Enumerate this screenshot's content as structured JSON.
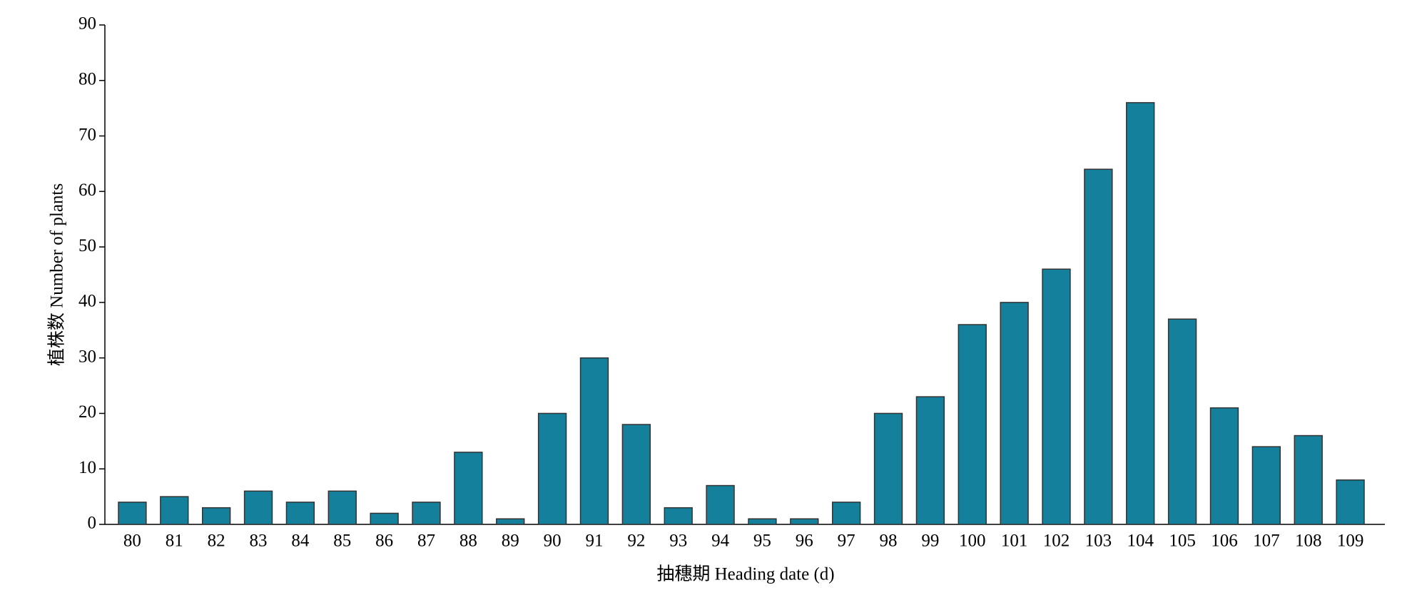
{
  "chart_data": {
    "type": "bar",
    "x_label": "抽穗期 Heading date (d)",
    "y_label": "植株数 Number of plants",
    "categories": [
      "80",
      "81",
      "82",
      "83",
      "84",
      "85",
      "86",
      "87",
      "88",
      "89",
      "90",
      "91",
      "92",
      "93",
      "94",
      "95",
      "96",
      "97",
      "98",
      "99",
      "100",
      "101",
      "102",
      "103",
      "104",
      "105",
      "106",
      "107",
      "108",
      "109"
    ],
    "values": [
      4,
      5,
      3,
      6,
      4,
      6,
      2,
      4,
      13,
      1,
      20,
      30,
      18,
      3,
      7,
      1,
      1,
      4,
      20,
      23,
      36,
      40,
      46,
      64,
      76,
      37,
      21,
      14,
      16,
      8
    ],
    "color": "#14809b",
    "ylim": [
      0,
      90
    ],
    "yticks": [
      0,
      10,
      20,
      30,
      40,
      50,
      60,
      70,
      80,
      90
    ],
    "grid": false
  }
}
